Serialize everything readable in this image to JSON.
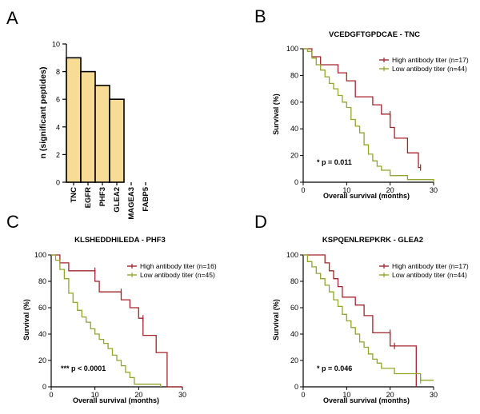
{
  "chart_data": [
    {
      "panel": "A",
      "type": "bar",
      "ylabel": "n (significant peptides)",
      "categories": [
        "TNC",
        "EGFR",
        "PHF3",
        "GLEA2",
        "MAGEA3",
        "FABP5"
      ],
      "values": [
        9,
        8,
        7,
        6,
        0,
        0
      ],
      "yticks": [
        0,
        2,
        4,
        6,
        8,
        10
      ],
      "ylim": [
        0,
        10
      ],
      "bar_color": "#f7dc95"
    },
    {
      "panel": "B",
      "type": "line",
      "title": "VCEDGFTGPDCAE - TNC",
      "xlabel": "Overall survival (months)",
      "ylabel": "Survival  (%)",
      "xticks": [
        0,
        10,
        20,
        30
      ],
      "yticks": [
        0,
        20,
        40,
        60,
        80,
        100
      ],
      "xlim": [
        0,
        30
      ],
      "ylim": [
        0,
        100
      ],
      "legend": [
        "High antibody titer (n=17)",
        "Low antibody titer (n=44)"
      ],
      "annotation": "* p = 0.011",
      "series": [
        {
          "name": "High antibody titer (n=17)",
          "color": "#a5232b",
          "points": [
            [
              0,
              100
            ],
            [
              2,
              100
            ],
            [
              2,
              94
            ],
            [
              4,
              94
            ],
            [
              4,
              88
            ],
            [
              8,
              88
            ],
            [
              8,
              82
            ],
            [
              10,
              82
            ],
            [
              10,
              76
            ],
            [
              12,
              76
            ],
            [
              12,
              64
            ],
            [
              16,
              64
            ],
            [
              16,
              58
            ],
            [
              18,
              58
            ],
            [
              18,
              51
            ],
            [
              20,
              51
            ],
            [
              20,
              41
            ],
            [
              21,
              41
            ],
            [
              21,
              33
            ],
            [
              24,
              33
            ],
            [
              24,
              22
            ],
            [
              26.5,
              22
            ],
            [
              26.5,
              11
            ],
            [
              27,
              11
            ]
          ]
        },
        {
          "name": "Low antibody titer (n=44)",
          "color": "#94a52b",
          "points": [
            [
              0,
              100
            ],
            [
              1,
              100
            ],
            [
              1,
              98
            ],
            [
              2,
              98
            ],
            [
              2,
              93
            ],
            [
              3,
              93
            ],
            [
              3,
              88
            ],
            [
              4,
              88
            ],
            [
              4,
              84
            ],
            [
              5,
              84
            ],
            [
              5,
              79
            ],
            [
              6,
              79
            ],
            [
              6,
              74
            ],
            [
              7,
              74
            ],
            [
              7,
              70
            ],
            [
              8,
              70
            ],
            [
              8,
              65
            ],
            [
              9,
              65
            ],
            [
              9,
              60
            ],
            [
              10,
              60
            ],
            [
              10,
              56
            ],
            [
              11,
              56
            ],
            [
              11,
              47
            ],
            [
              12,
              47
            ],
            [
              12,
              42
            ],
            [
              13,
              42
            ],
            [
              13,
              37
            ],
            [
              14,
              37
            ],
            [
              14,
              28
            ],
            [
              15,
              28
            ],
            [
              15,
              21
            ],
            [
              16,
              21
            ],
            [
              16,
              16
            ],
            [
              17,
              16
            ],
            [
              17,
              12
            ],
            [
              18,
              12
            ],
            [
              18,
              9
            ],
            [
              20,
              9
            ],
            [
              20,
              5
            ],
            [
              24,
              5
            ],
            [
              24,
              2
            ],
            [
              30,
              2
            ],
            [
              30,
              0
            ]
          ]
        }
      ],
      "censor_marks": [
        {
          "series": 0,
          "x": 20,
          "y": 51
        },
        {
          "series": 0,
          "x": 27,
          "y": 11
        }
      ]
    },
    {
      "panel": "C",
      "type": "line",
      "title": "KLSHEDDHILEDA - PHF3",
      "xlabel": "Overall survival (months)",
      "ylabel": "Survival  (%)",
      "xticks": [
        0,
        10,
        20,
        30
      ],
      "yticks": [
        0,
        20,
        40,
        60,
        80,
        100
      ],
      "xlim": [
        0,
        30
      ],
      "ylim": [
        0,
        100
      ],
      "legend": [
        "High antibody titer (n=16)",
        "Low antibody titer (n=45)"
      ],
      "annotation": "*** p < 0.0001",
      "series": [
        {
          "name": "High antibody titer (n=16)",
          "color": "#a5232b",
          "points": [
            [
              0,
              100
            ],
            [
              2,
              100
            ],
            [
              2,
              94
            ],
            [
              4,
              94
            ],
            [
              4,
              88
            ],
            [
              10,
              88
            ],
            [
              10,
              80
            ],
            [
              11,
              80
            ],
            [
              11,
              72
            ],
            [
              16,
              72
            ],
            [
              16,
              66
            ],
            [
              18,
              66
            ],
            [
              18,
              60
            ],
            [
              20,
              60
            ],
            [
              20,
              52
            ],
            [
              21,
              52
            ],
            [
              21,
              39
            ],
            [
              24,
              39
            ],
            [
              24,
              26
            ],
            [
              26.5,
              26
            ],
            [
              26.5,
              0
            ],
            [
              30,
              0
            ]
          ]
        },
        {
          "name": "Low antibody titer (n=45)",
          "color": "#94a52b",
          "points": [
            [
              0,
              100
            ],
            [
              1,
              100
            ],
            [
              1,
              96
            ],
            [
              2,
              96
            ],
            [
              2,
              89
            ],
            [
              3,
              89
            ],
            [
              3,
              82
            ],
            [
              4,
              82
            ],
            [
              4,
              71
            ],
            [
              5,
              71
            ],
            [
              5,
              64
            ],
            [
              6,
              64
            ],
            [
              6,
              58
            ],
            [
              7,
              58
            ],
            [
              7,
              53
            ],
            [
              8,
              53
            ],
            [
              8,
              49
            ],
            [
              9,
              49
            ],
            [
              9,
              44
            ],
            [
              10,
              44
            ],
            [
              10,
              40
            ],
            [
              11,
              40
            ],
            [
              11,
              36
            ],
            [
              12,
              36
            ],
            [
              12,
              33
            ],
            [
              13,
              33
            ],
            [
              13,
              29
            ],
            [
              14,
              29
            ],
            [
              14,
              24
            ],
            [
              15,
              24
            ],
            [
              15,
              20
            ],
            [
              16,
              20
            ],
            [
              16,
              16
            ],
            [
              17,
              16
            ],
            [
              17,
              11
            ],
            [
              18,
              11
            ],
            [
              18,
              7
            ],
            [
              19,
              7
            ],
            [
              19,
              2
            ],
            [
              25,
              2
            ],
            [
              25,
              0
            ]
          ]
        }
      ],
      "censor_marks": [
        {
          "series": 0,
          "x": 10,
          "y": 88
        },
        {
          "series": 0,
          "x": 16,
          "y": 72
        },
        {
          "series": 0,
          "x": 21,
          "y": 52
        }
      ]
    },
    {
      "panel": "D",
      "type": "line",
      "title": "KSPQENLREPKRK - GLEA2",
      "xlabel": "Overall survival (months)",
      "ylabel": "Survival  (%)",
      "xticks": [
        0,
        10,
        20,
        30
      ],
      "yticks": [
        0,
        20,
        40,
        60,
        80,
        100
      ],
      "xlim": [
        0,
        30
      ],
      "ylim": [
        0,
        100
      ],
      "legend": [
        "High antibody titer (n=17)",
        "Low antibody titer (n=44)"
      ],
      "annotation": "* p = 0.046",
      "series": [
        {
          "name": "High antibody titer (n=17)",
          "color": "#a5232b",
          "points": [
            [
              0,
              100
            ],
            [
              5,
              100
            ],
            [
              5,
              94
            ],
            [
              6,
              94
            ],
            [
              6,
              88
            ],
            [
              7,
              88
            ],
            [
              7,
              82
            ],
            [
              8,
              82
            ],
            [
              8,
              76
            ],
            [
              9,
              76
            ],
            [
              9,
              68
            ],
            [
              12,
              68
            ],
            [
              12,
              62
            ],
            [
              14,
              62
            ],
            [
              14,
              54
            ],
            [
              16,
              54
            ],
            [
              16,
              41
            ],
            [
              20,
              41
            ],
            [
              20,
              31
            ],
            [
              26,
              31
            ],
            [
              26,
              0
            ]
          ]
        },
        {
          "name": "Low antibody titer (n=44)",
          "color": "#94a52b",
          "points": [
            [
              0,
              100
            ],
            [
              1,
              100
            ],
            [
              1,
              95
            ],
            [
              2,
              95
            ],
            [
              2,
              91
            ],
            [
              3,
              91
            ],
            [
              3,
              86
            ],
            [
              4,
              86
            ],
            [
              4,
              82
            ],
            [
              5,
              82
            ],
            [
              5,
              77
            ],
            [
              6,
              77
            ],
            [
              6,
              72
            ],
            [
              7,
              72
            ],
            [
              7,
              66
            ],
            [
              8,
              66
            ],
            [
              8,
              61
            ],
            [
              9,
              61
            ],
            [
              9,
              55
            ],
            [
              10,
              55
            ],
            [
              10,
              50
            ],
            [
              11,
              50
            ],
            [
              11,
              45
            ],
            [
              12,
              45
            ],
            [
              12,
              40
            ],
            [
              13,
              40
            ],
            [
              13,
              34
            ],
            [
              14,
              34
            ],
            [
              14,
              30
            ],
            [
              15,
              30
            ],
            [
              15,
              25
            ],
            [
              16,
              25
            ],
            [
              16,
              21
            ],
            [
              17,
              21
            ],
            [
              17,
              18
            ],
            [
              18,
              18
            ],
            [
              18,
              14
            ],
            [
              21,
              14
            ],
            [
              21,
              10
            ],
            [
              27,
              10
            ],
            [
              27,
              5
            ],
            [
              30,
              5
            ]
          ]
        }
      ],
      "censor_marks": [
        {
          "series": 0,
          "x": 20,
          "y": 41
        },
        {
          "series": 0,
          "x": 21,
          "y": 31
        },
        {
          "series": 1,
          "x": 27,
          "y": 5
        }
      ]
    }
  ],
  "panel_labels": [
    "A",
    "B",
    "C",
    "D"
  ]
}
